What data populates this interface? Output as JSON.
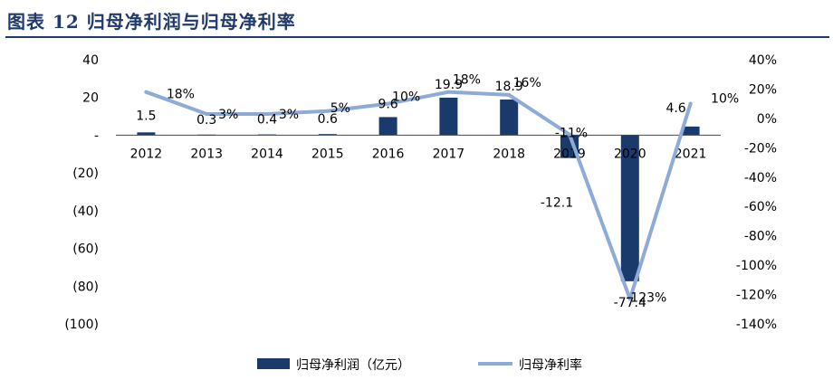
{
  "header": {
    "title": "图表 12 归母净利润与归母净利率"
  },
  "chart_data": {
    "type": "bar",
    "categories": [
      "2012",
      "2013",
      "2014",
      "2015",
      "2016",
      "2017",
      "2018",
      "2019",
      "2020",
      "2021"
    ],
    "series": [
      {
        "name": "归母净利润（亿元）",
        "type": "bar",
        "axis": "left",
        "values": [
          1.5,
          0.3,
          0.4,
          0.6,
          9.6,
          19.9,
          18.9,
          -12.1,
          -77.4,
          4.6
        ],
        "labels": [
          "1.5",
          "0.3",
          "0.4",
          "0.6",
          "9.6",
          "19.9",
          "18.9",
          "-12.1",
          "-77.4",
          "4.6"
        ],
        "color": "#1a3a6b"
      },
      {
        "name": "归母净利率",
        "type": "line",
        "axis": "right",
        "values": [
          18,
          3,
          3,
          5,
          10,
          18,
          16,
          -11,
          -123,
          10
        ],
        "labels": [
          "18%",
          "3%",
          "3%",
          "5%",
          "10%",
          "18%",
          "16%",
          "-11%",
          "-123%",
          "10%"
        ],
        "color": "#8eaad6"
      }
    ],
    "left_axis": {
      "min": -100,
      "max": 40,
      "ticks": [
        "40",
        "20",
        "-",
        "(20)",
        "(40)",
        "(60)",
        "(80)",
        "(100)"
      ]
    },
    "right_axis": {
      "min": -140,
      "max": 40,
      "ticks": [
        "40%",
        "20%",
        "0%",
        "-20%",
        "-40%",
        "-60%",
        "-80%",
        "-100%",
        "-120%",
        "-140%"
      ]
    },
    "grid": false,
    "legend_position": "bottom"
  }
}
